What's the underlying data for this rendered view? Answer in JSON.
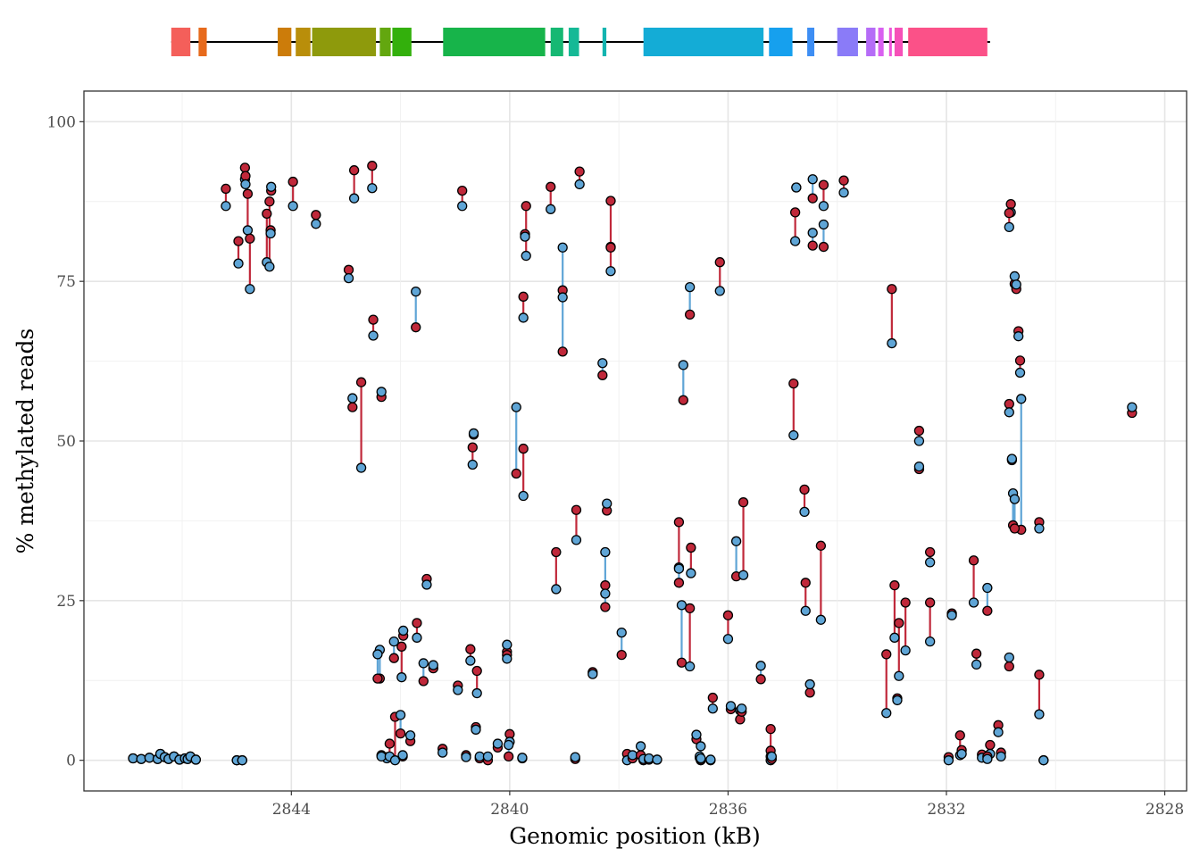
{
  "chart_data": {
    "type": "scatter",
    "xlabel": "Genomic position (kB)",
    "ylabel": "% methylated reads",
    "x_reversed": true,
    "xlim": [
      2847.8,
      2827.6
    ],
    "ylim": [
      -4.8,
      104.8
    ],
    "xticks": [
      2844,
      2840,
      2836,
      2832,
      2828
    ],
    "yticks": [
      0,
      25,
      50,
      75,
      100
    ],
    "grid": true,
    "legend": "none",
    "colors": {
      "red": "#c0283a",
      "blue": "#5fa5d6",
      "outline": "#000000",
      "gene_line": "#000000"
    },
    "gene_track": {
      "start": 2846.2,
      "end": 2831.2,
      "exons": [
        {
          "start": 2846.2,
          "end": 2845.85,
          "color": "#f45f5a"
        },
        {
          "start": 2845.7,
          "end": 2845.55,
          "color": "#e76a1c"
        },
        {
          "start": 2844.25,
          "end": 2844.0,
          "color": "#cc7c0a"
        },
        {
          "start": 2843.92,
          "end": 2843.65,
          "color": "#b98e0a"
        },
        {
          "start": 2843.62,
          "end": 2842.45,
          "color": "#8e9a0c"
        },
        {
          "start": 2842.38,
          "end": 2842.18,
          "color": "#63a70f"
        },
        {
          "start": 2842.15,
          "end": 2841.8,
          "color": "#33b00c"
        },
        {
          "start": 2841.22,
          "end": 2839.35,
          "color": "#17b44a"
        },
        {
          "start": 2839.25,
          "end": 2839.02,
          "color": "#16b873"
        },
        {
          "start": 2838.92,
          "end": 2838.73,
          "color": "#15b996"
        },
        {
          "start": 2838.3,
          "end": 2838.23,
          "color": "#13b4b0"
        },
        {
          "start": 2837.55,
          "end": 2835.35,
          "color": "#14acd6"
        },
        {
          "start": 2835.25,
          "end": 2834.82,
          "color": "#16a0ee"
        },
        {
          "start": 2834.55,
          "end": 2834.42,
          "color": "#3d8ef4"
        },
        {
          "start": 2834.0,
          "end": 2833.62,
          "color": "#8a7bf8"
        },
        {
          "start": 2833.47,
          "end": 2833.3,
          "color": "#b56cf7"
        },
        {
          "start": 2833.25,
          "end": 2833.15,
          "color": "#d960f0"
        },
        {
          "start": 2833.05,
          "end": 2833.0,
          "color": "#ed56da"
        },
        {
          "start": 2832.95,
          "end": 2832.8,
          "color": "#f651b8"
        },
        {
          "start": 2832.7,
          "end": 2831.25,
          "color": "#fb5188"
        }
      ]
    },
    "pairs": [
      [
        2846.9,
        0.3,
        0.3
      ],
      [
        2846.75,
        0.2,
        0.2
      ],
      [
        2846.6,
        0.4,
        0.4
      ],
      [
        2846.45,
        0.2,
        0.2
      ],
      [
        2846.4,
        1.0,
        1.0
      ],
      [
        2846.32,
        0.5,
        0.5
      ],
      [
        2846.25,
        0.2,
        0.2
      ],
      [
        2846.15,
        0.6,
        0.6
      ],
      [
        2846.05,
        0.1,
        0.1
      ],
      [
        2845.95,
        0.3,
        0.3
      ],
      [
        2845.9,
        0.2,
        0.2
      ],
      [
        2845.85,
        0.6,
        0.6
      ],
      [
        2845.75,
        0.1,
        0.1
      ],
      [
        2845.0,
        0.0,
        0.0
      ],
      [
        2844.9,
        0.0,
        0.0
      ],
      [
        2845.2,
        89.5,
        86.8
      ],
      [
        2844.97,
        81.3,
        77.8
      ],
      [
        2844.85,
        92.8,
        91.0
      ],
      [
        2844.84,
        91.5,
        90.2
      ],
      [
        2844.8,
        88.7,
        83.0
      ],
      [
        2844.76,
        81.7,
        73.8
      ],
      [
        2844.45,
        85.6,
        78.0
      ],
      [
        2844.4,
        87.5,
        77.3
      ],
      [
        2844.38,
        83.0,
        82.5
      ],
      [
        2844.37,
        89.2,
        89.8
      ],
      [
        2843.97,
        90.6,
        86.8
      ],
      [
        2843.55,
        85.4,
        84.0
      ],
      [
        2842.95,
        76.8,
        75.5
      ],
      [
        2842.85,
        92.4,
        88.0
      ],
      [
        2842.72,
        59.2,
        45.8
      ],
      [
        2842.88,
        55.3,
        56.7
      ],
      [
        2842.52,
        93.1,
        89.6
      ],
      [
        2842.5,
        69.0,
        66.5
      ],
      [
        2842.35,
        56.9,
        57.7
      ],
      [
        2842.38,
        12.8,
        17.3
      ],
      [
        2842.42,
        12.8,
        16.6
      ],
      [
        2842.25,
        0.5,
        0.3
      ],
      [
        2842.35,
        0.8,
        0.6
      ],
      [
        2842.2,
        2.6,
        0.6
      ],
      [
        2842.12,
        16.0,
        18.6
      ],
      [
        2842.1,
        6.8,
        0.0
      ],
      [
        2842.0,
        4.2,
        7.1
      ],
      [
        2841.95,
        19.5,
        20.3
      ],
      [
        2841.98,
        17.8,
        13.0
      ],
      [
        2841.82,
        3.0,
        3.9
      ],
      [
        2841.96,
        0.6,
        0.8
      ],
      [
        2841.72,
        67.8,
        73.4
      ],
      [
        2841.7,
        21.5,
        19.2
      ],
      [
        2841.58,
        12.4,
        15.2
      ],
      [
        2841.52,
        28.4,
        27.5
      ],
      [
        2841.4,
        14.4,
        14.9
      ],
      [
        2841.23,
        1.8,
        1.2
      ],
      [
        2840.95,
        11.7,
        11.0
      ],
      [
        2840.87,
        89.2,
        86.8
      ],
      [
        2840.72,
        17.4,
        15.6
      ],
      [
        2840.8,
        0.8,
        0.5
      ],
      [
        2840.68,
        49.0,
        46.3
      ],
      [
        2840.66,
        51.0,
        51.2
      ],
      [
        2840.6,
        14.0,
        10.5
      ],
      [
        2840.62,
        5.2,
        4.8
      ],
      [
        2840.55,
        0.3,
        0.6
      ],
      [
        2840.4,
        0.0,
        0.6
      ],
      [
        2840.22,
        2.0,
        2.6
      ],
      [
        2840.05,
        17.0,
        18.1
      ],
      [
        2840.05,
        16.5,
        15.9
      ],
      [
        2840.0,
        4.1,
        2.9
      ],
      [
        2840.02,
        0.6,
        2.4
      ],
      [
        2839.88,
        44.9,
        55.3
      ],
      [
        2839.75,
        48.8,
        41.4
      ],
      [
        2839.72,
        82.4,
        82.0
      ],
      [
        2839.7,
        86.8,
        79.0
      ],
      [
        2839.75,
        72.6,
        69.3
      ],
      [
        2839.77,
        0.3,
        0.4
      ],
      [
        2839.25,
        89.8,
        86.3
      ],
      [
        2839.15,
        32.6,
        26.8
      ],
      [
        2839.03,
        73.6,
        72.5
      ],
      [
        2839.03,
        64.0,
        80.3
      ],
      [
        2838.78,
        39.2,
        34.5
      ],
      [
        2838.72,
        92.2,
        90.2
      ],
      [
        2838.8,
        0.2,
        0.5
      ],
      [
        2838.48,
        13.8,
        13.5
      ],
      [
        2838.3,
        60.3,
        62.2
      ],
      [
        2838.25,
        27.4,
        32.6
      ],
      [
        2838.25,
        24.0,
        26.1
      ],
      [
        2838.22,
        39.1,
        40.2
      ],
      [
        2838.15,
        87.6,
        80.4
      ],
      [
        2838.15,
        80.3,
        76.6
      ],
      [
        2837.95,
        16.5,
        20.0
      ],
      [
        2837.85,
        1.0,
        0.0
      ],
      [
        2837.75,
        0.3,
        0.8
      ],
      [
        2837.6,
        0.8,
        2.2
      ],
      [
        2837.55,
        0.0,
        0.2
      ],
      [
        2837.45,
        0.1,
        0.3
      ],
      [
        2837.3,
        0.1,
        0.1
      ],
      [
        2836.9,
        37.3,
        30.2
      ],
      [
        2836.82,
        56.4,
        61.9
      ],
      [
        2836.9,
        27.8,
        30.0
      ],
      [
        2836.85,
        15.3,
        24.3
      ],
      [
        2836.7,
        69.8,
        74.1
      ],
      [
        2836.7,
        23.8,
        14.7
      ],
      [
        2836.68,
        33.3,
        29.3
      ],
      [
        2836.58,
        3.3,
        4.0
      ],
      [
        2836.52,
        0.4,
        0.6
      ],
      [
        2836.5,
        0.0,
        2.2
      ],
      [
        2836.5,
        0.2,
        0.3
      ],
      [
        2836.28,
        9.8,
        8.1
      ],
      [
        2836.32,
        0.0,
        0.1
      ],
      [
        2836.15,
        78.0,
        73.5
      ],
      [
        2836.0,
        22.7,
        19.0
      ],
      [
        2835.85,
        28.8,
        34.3
      ],
      [
        2835.72,
        40.4,
        29.0
      ],
      [
        2835.78,
        6.4,
        7.8
      ],
      [
        2835.75,
        7.6,
        8.1
      ],
      [
        2835.95,
        8.0,
        8.5
      ],
      [
        2835.4,
        12.7,
        14.8
      ],
      [
        2835.22,
        4.9,
        0.0
      ],
      [
        2835.22,
        1.5,
        0.6
      ],
      [
        2835.2,
        0.2,
        0.6
      ],
      [
        2834.8,
        59.0,
        50.9
      ],
      [
        2834.77,
        85.8,
        81.3
      ],
      [
        2834.75,
        89.7,
        89.7
      ],
      [
        2834.6,
        42.4,
        38.9
      ],
      [
        2834.58,
        27.8,
        23.4
      ],
      [
        2834.5,
        10.6,
        11.9
      ],
      [
        2834.45,
        80.6,
        82.6
      ],
      [
        2834.45,
        88.0,
        91.0
      ],
      [
        2834.3,
        33.6,
        22.0
      ],
      [
        2834.25,
        90.1,
        86.8
      ],
      [
        2834.25,
        80.4,
        83.9
      ],
      [
        2833.88,
        90.8,
        88.9
      ],
      [
        2833.0,
        73.8,
        65.3
      ],
      [
        2833.1,
        16.6,
        7.4
      ],
      [
        2832.95,
        27.4,
        19.2
      ],
      [
        2832.9,
        9.7,
        9.4
      ],
      [
        2832.87,
        21.5,
        13.2
      ],
      [
        2832.75,
        24.7,
        17.2
      ],
      [
        2832.5,
        51.6,
        50.0
      ],
      [
        2832.5,
        45.6,
        46.0
      ],
      [
        2832.3,
        32.6,
        31.0
      ],
      [
        2832.3,
        24.7,
        18.6
      ],
      [
        2831.96,
        0.5,
        0.0
      ],
      [
        2831.9,
        23.0,
        22.7
      ],
      [
        2831.75,
        3.9,
        0.8
      ],
      [
        2831.72,
        1.6,
        1.0
      ],
      [
        2831.5,
        31.3,
        24.7
      ],
      [
        2831.45,
        16.7,
        15.0
      ],
      [
        2831.25,
        23.4,
        27.0
      ],
      [
        2831.35,
        0.9,
        0.4
      ],
      [
        2831.2,
        2.4,
        1.0
      ],
      [
        2831.25,
        0.6,
        0.2
      ],
      [
        2831.05,
        5.5,
        4.4
      ],
      [
        2831.0,
        1.2,
        0.6
      ],
      [
        2830.85,
        55.8,
        54.5
      ],
      [
        2830.82,
        87.1,
        85.8
      ],
      [
        2830.85,
        85.7,
        83.5
      ],
      [
        2830.75,
        74.6,
        75.8
      ],
      [
        2830.72,
        73.8,
        74.5
      ],
      [
        2830.68,
        67.2,
        66.4
      ],
      [
        2830.65,
        62.6,
        60.7
      ],
      [
        2830.63,
        36.1,
        56.6
      ],
      [
        2830.78,
        36.8,
        41.8
      ],
      [
        2830.75,
        36.3,
        40.9
      ],
      [
        2830.8,
        47.0,
        47.2
      ],
      [
        2830.85,
        14.7,
        16.1
      ],
      [
        2830.3,
        37.3,
        36.3
      ],
      [
        2830.3,
        13.4,
        7.2
      ],
      [
        2830.22,
        0.0,
        0.0
      ],
      [
        2828.6,
        54.4,
        55.3
      ]
    ]
  }
}
